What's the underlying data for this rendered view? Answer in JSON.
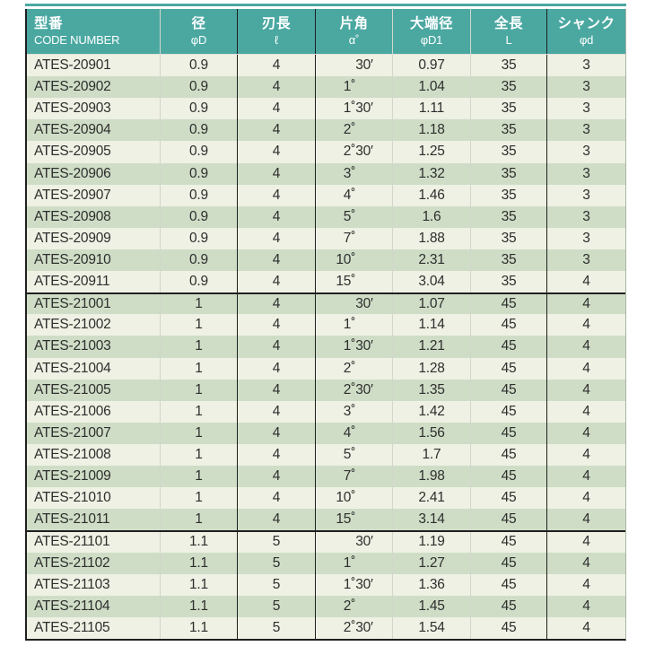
{
  "colors": {
    "header_bg": "#4aa8a1",
    "row_light": "#eef1e3",
    "row_dark": "#cfddc6",
    "text": "#2e2e2e",
    "border_dark": "#1f1f1f",
    "border_light": "#d2d6cb"
  },
  "columns": [
    {
      "jp": "型番",
      "sub": "CODE NUMBER"
    },
    {
      "jp": "径",
      "sub": "φD"
    },
    {
      "jp": "刃長",
      "sub": "ℓ"
    },
    {
      "jp": "片角",
      "sub": "α˚"
    },
    {
      "jp": "大端径",
      "sub": "φD1"
    },
    {
      "jp": "全長",
      "sub": "L"
    },
    {
      "jp": "シャンク",
      "sub": "φd"
    }
  ],
  "sections": [
    11,
    11,
    5
  ],
  "rows": [
    {
      "code": "ATES-20901",
      "d": "0.9",
      "l": "4",
      "alpha_deg": "",
      "alpha_min": "30′",
      "d1": "0.97",
      "L": "35",
      "shank": "3"
    },
    {
      "code": "ATES-20902",
      "d": "0.9",
      "l": "4",
      "alpha_deg": "1˚",
      "alpha_min": "",
      "d1": "1.04",
      "L": "35",
      "shank": "3"
    },
    {
      "code": "ATES-20903",
      "d": "0.9",
      "l": "4",
      "alpha_deg": "1˚",
      "alpha_min": "30′",
      "d1": "1.11",
      "L": "35",
      "shank": "3"
    },
    {
      "code": "ATES-20904",
      "d": "0.9",
      "l": "4",
      "alpha_deg": "2˚",
      "alpha_min": "",
      "d1": "1.18",
      "L": "35",
      "shank": "3"
    },
    {
      "code": "ATES-20905",
      "d": "0.9",
      "l": "4",
      "alpha_deg": "2˚",
      "alpha_min": "30′",
      "d1": "1.25",
      "L": "35",
      "shank": "3"
    },
    {
      "code": "ATES-20906",
      "d": "0.9",
      "l": "4",
      "alpha_deg": "3˚",
      "alpha_min": "",
      "d1": "1.32",
      "L": "35",
      "shank": "3"
    },
    {
      "code": "ATES-20907",
      "d": "0.9",
      "l": "4",
      "alpha_deg": "4˚",
      "alpha_min": "",
      "d1": "1.46",
      "L": "35",
      "shank": "3"
    },
    {
      "code": "ATES-20908",
      "d": "0.9",
      "l": "4",
      "alpha_deg": "5˚",
      "alpha_min": "",
      "d1": "1.6",
      "L": "35",
      "shank": "3"
    },
    {
      "code": "ATES-20909",
      "d": "0.9",
      "l": "4",
      "alpha_deg": "7˚",
      "alpha_min": "",
      "d1": "1.88",
      "L": "35",
      "shank": "3"
    },
    {
      "code": "ATES-20910",
      "d": "0.9",
      "l": "4",
      "alpha_deg": "10˚",
      "alpha_min": "",
      "d1": "2.31",
      "L": "35",
      "shank": "3"
    },
    {
      "code": "ATES-20911",
      "d": "0.9",
      "l": "4",
      "alpha_deg": "15˚",
      "alpha_min": "",
      "d1": "3.04",
      "L": "35",
      "shank": "4"
    },
    {
      "code": "ATES-21001",
      "d": "1",
      "l": "4",
      "alpha_deg": "",
      "alpha_min": "30′",
      "d1": "1.07",
      "L": "45",
      "shank": "4"
    },
    {
      "code": "ATES-21002",
      "d": "1",
      "l": "4",
      "alpha_deg": "1˚",
      "alpha_min": "",
      "d1": "1.14",
      "L": "45",
      "shank": "4"
    },
    {
      "code": "ATES-21003",
      "d": "1",
      "l": "4",
      "alpha_deg": "1˚",
      "alpha_min": "30′",
      "d1": "1.21",
      "L": "45",
      "shank": "4"
    },
    {
      "code": "ATES-21004",
      "d": "1",
      "l": "4",
      "alpha_deg": "2˚",
      "alpha_min": "",
      "d1": "1.28",
      "L": "45",
      "shank": "4"
    },
    {
      "code": "ATES-21005",
      "d": "1",
      "l": "4",
      "alpha_deg": "2˚",
      "alpha_min": "30′",
      "d1": "1.35",
      "L": "45",
      "shank": "4"
    },
    {
      "code": "ATES-21006",
      "d": "1",
      "l": "4",
      "alpha_deg": "3˚",
      "alpha_min": "",
      "d1": "1.42",
      "L": "45",
      "shank": "4"
    },
    {
      "code": "ATES-21007",
      "d": "1",
      "l": "4",
      "alpha_deg": "4˚",
      "alpha_min": "",
      "d1": "1.56",
      "L": "45",
      "shank": "4"
    },
    {
      "code": "ATES-21008",
      "d": "1",
      "l": "4",
      "alpha_deg": "5˚",
      "alpha_min": "",
      "d1": "1.7",
      "L": "45",
      "shank": "4"
    },
    {
      "code": "ATES-21009",
      "d": "1",
      "l": "4",
      "alpha_deg": "7˚",
      "alpha_min": "",
      "d1": "1.98",
      "L": "45",
      "shank": "4"
    },
    {
      "code": "ATES-21010",
      "d": "1",
      "l": "4",
      "alpha_deg": "10˚",
      "alpha_min": "",
      "d1": "2.41",
      "L": "45",
      "shank": "4"
    },
    {
      "code": "ATES-21011",
      "d": "1",
      "l": "4",
      "alpha_deg": "15˚",
      "alpha_min": "",
      "d1": "3.14",
      "L": "45",
      "shank": "4"
    },
    {
      "code": "ATES-21101",
      "d": "1.1",
      "l": "5",
      "alpha_deg": "",
      "alpha_min": "30′",
      "d1": "1.19",
      "L": "45",
      "shank": "4"
    },
    {
      "code": "ATES-21102",
      "d": "1.1",
      "l": "5",
      "alpha_deg": "1˚",
      "alpha_min": "",
      "d1": "1.27",
      "L": "45",
      "shank": "4"
    },
    {
      "code": "ATES-21103",
      "d": "1.1",
      "l": "5",
      "alpha_deg": "1˚",
      "alpha_min": "30′",
      "d1": "1.36",
      "L": "45",
      "shank": "4"
    },
    {
      "code": "ATES-21104",
      "d": "1.1",
      "l": "5",
      "alpha_deg": "2˚",
      "alpha_min": "",
      "d1": "1.45",
      "L": "45",
      "shank": "4"
    },
    {
      "code": "ATES-21105",
      "d": "1.1",
      "l": "5",
      "alpha_deg": "2˚",
      "alpha_min": "30′",
      "d1": "1.54",
      "L": "45",
      "shank": "4"
    }
  ]
}
